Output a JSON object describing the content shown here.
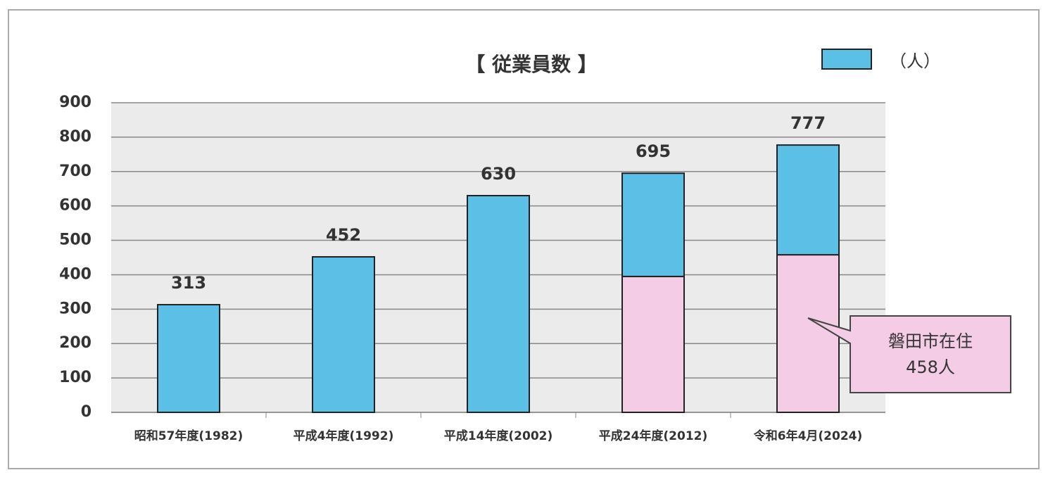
{
  "chart_data": {
    "type": "stacked_bar",
    "title": "【 従業員数 】",
    "categories": [
      "昭和57年度(1982)",
      "平成4年度(1992)",
      "平成14年度(2002)",
      "平成24年度(2012)",
      "令和6年4月(2024)"
    ],
    "series": [
      {
        "name": "磐田市在住",
        "color": "#f4cce6",
        "values": [
          null,
          null,
          null,
          395,
          458
        ],
        "value_labels": [
          null,
          null,
          null,
          null,
          "458人"
        ]
      },
      {
        "name": "（人）",
        "color": "#5bbfe6",
        "values": [
          313,
          452,
          630,
          300,
          319
        ]
      }
    ],
    "totals": [
      313,
      452,
      630,
      695,
      777
    ],
    "ylim": [
      0,
      900
    ],
    "yticks": [
      0,
      100,
      200,
      300,
      400,
      500,
      600,
      700,
      800,
      900
    ],
    "grid": true
  }
}
